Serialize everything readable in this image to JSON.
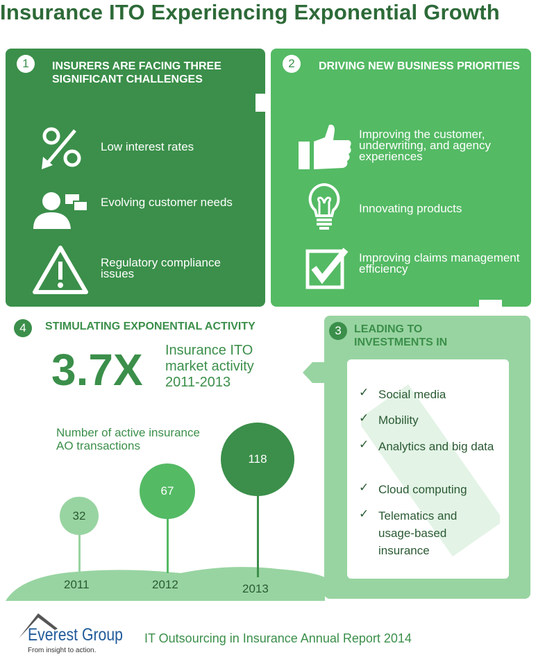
{
  "title": "Insurance ITO Experiencing Exponential Growth",
  "panel1": {
    "number": "1",
    "heading": "INSURERS ARE FACING THREE SIGNIFICANT CHALLENGES",
    "items": [
      {
        "label": "Low interest rates",
        "icon": "percent-down-icon"
      },
      {
        "label": "Evolving customer needs",
        "icon": "customer-chat-icon"
      },
      {
        "label": "Regulatory compliance issues",
        "icon": "warning-icon"
      }
    ]
  },
  "panel2": {
    "number": "2",
    "heading": "DRIVING NEW BUSINESS PRIORITIES",
    "items": [
      {
        "label": "Improving the customer, underwriting, and agency experiences",
        "icon": "thumbs-up-icon"
      },
      {
        "label": "Innovating products",
        "icon": "lightbulb-icon"
      },
      {
        "label": "Improving claims management efficiency",
        "icon": "checkbox-icon"
      }
    ]
  },
  "panel3": {
    "number": "3",
    "heading": "LEADING TO INVESTMENTS IN",
    "items": [
      "Social media",
      "Mobility",
      "Analytics and big data",
      "Cloud computing",
      "Telematics and usage-based insurance"
    ]
  },
  "panel4": {
    "number": "4",
    "heading": "STIMULATING EXPONENTIAL ACTIVITY",
    "multiplier": "3.7X",
    "multiplier_caption": "Insurance ITO market activity 2011-2013"
  },
  "chart_data": {
    "type": "bubble",
    "title": "Number of active insurance AO transactions",
    "categories": [
      "2011",
      "2012",
      "2013"
    ],
    "values": [
      32,
      67,
      118
    ],
    "colors": [
      "#98d4a1",
      "#54ba64",
      "#3b8f4a"
    ]
  },
  "footer": {
    "logo_name": "Everest Group",
    "logo_tagline": "From insight to action.",
    "report": "IT Outsourcing in Insurance Annual Report 2014"
  },
  "colors": {
    "dark_green": "#3b8f4a",
    "mid_green": "#54ba64",
    "light_green": "#98d4a1",
    "title": "#2d6a38"
  }
}
